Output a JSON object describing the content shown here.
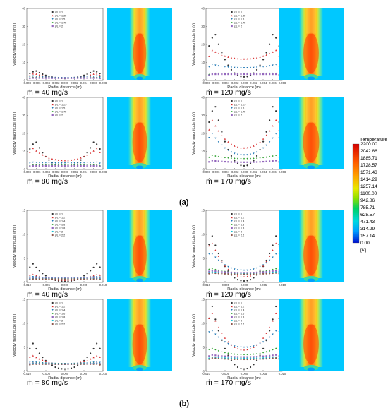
{
  "colorbar": {
    "title": "Temperature",
    "unit": "[K]",
    "ticks": [
      "2200.00",
      "2042.86",
      "1885.71",
      "1728.57",
      "1571.43",
      "1414.29",
      "1257.14",
      "1100.00",
      "942.86",
      "785.71",
      "628.57",
      "471.43",
      "314.29",
      "157.14",
      "0.00"
    ]
  },
  "panel_labels": {
    "a": "(a)",
    "b": "(b)"
  },
  "flow_labels": {
    "a_40": "ṁ = 40 mg/s",
    "a_120": "ṁ = 120 mg/s",
    "a_80": "ṁ = 80 mg/s",
    "a_170": "ṁ = 170 mg/s",
    "b_40": "ṁ = 40 mg/s",
    "b_120": "ṁ = 120 mg/s",
    "b_80": "ṁ = 80 mg/s",
    "b_170": "ṁ = 170 mg/s"
  },
  "colors": {
    "contour_background": "#00c8ff",
    "series": [
      "#333333",
      "#d62728",
      "#1f77b4",
      "#2ca02c",
      "#9467bd",
      "#17becf"
    ]
  },
  "chart_data": [
    {
      "id": "a1",
      "type": "scatter",
      "flow": "ṁ = 40 mg/s",
      "xlabel": "Radial distance (m)",
      "ylabel": "Velocity magnitude (m/s)",
      "xlim": [
        -0.008,
        0.008
      ],
      "ylim": [
        0,
        40
      ],
      "xticks": [
        "-0.008",
        "-0.006",
        "-0.004",
        "-0.002",
        "0.000",
        "0.002",
        "0.004",
        "0.006",
        "0.008"
      ],
      "yticks": [
        "0",
        "10",
        "20",
        "30",
        "40"
      ],
      "series": [
        {
          "name": "z/L = 1",
          "peak": 5.5,
          "center": 1.2,
          "peak_x": 0.0062
        },
        {
          "name": "z/L = 1.25",
          "peak": 4.0,
          "center": 1.5,
          "peak_x": 0.0065
        },
        {
          "name": "z/L = 1.5",
          "peak": 2.5,
          "center": 1.5,
          "peak_x": 0.0068
        },
        {
          "name": "z/L = 1.75",
          "peak": 1.8,
          "center": 1.4,
          "peak_x": 0.007
        },
        {
          "name": "z/L = 2",
          "peak": 1.4,
          "center": 1.3,
          "peak_x": 0.007
        }
      ]
    },
    {
      "id": "a2",
      "type": "scatter",
      "flow": "ṁ = 120 mg/s",
      "xlabel": "Radial distance (m)",
      "ylabel": "Velocity magnitude (m/s)",
      "xlim": [
        -0.008,
        0.008
      ],
      "ylim": [
        0,
        40
      ],
      "xticks": [
        "-0.008",
        "-0.006",
        "-0.004",
        "-0.002",
        "0.000",
        "0.002",
        "0.004",
        "0.006",
        "0.008"
      ],
      "yticks": [
        "0",
        "10",
        "20",
        "30",
        "40"
      ],
      "series": [
        {
          "name": "z/L = 1",
          "peak": 27,
          "center": 2,
          "peak_x": 0.0062
        },
        {
          "name": "z/L = 1.25",
          "peak": 17,
          "center": 12,
          "peak_x": 0.0068
        },
        {
          "name": "z/L = 1.5",
          "peak": 9,
          "center": 7,
          "peak_x": 0.007
        },
        {
          "name": "z/L = 1.75",
          "peak": 4,
          "center": 4,
          "peak_x": 0.007
        },
        {
          "name": "z/L = 2",
          "peak": 3.5,
          "center": 3.5,
          "peak_x": 0.007
        }
      ]
    },
    {
      "id": "a3",
      "type": "scatter",
      "flow": "ṁ = 80 mg/s",
      "xlabel": "Radial distance (m)",
      "ylabel": "Velocity magnitude (m/s)",
      "xlim": [
        -0.008,
        0.008
      ],
      "ylim": [
        0,
        40
      ],
      "xticks": [
        "-0.008",
        "-0.006",
        "-0.004",
        "-0.002",
        "0.000",
        "0.002",
        "0.004",
        "0.006",
        "0.008"
      ],
      "yticks": [
        "0",
        "10",
        "20",
        "30",
        "40"
      ],
      "series": [
        {
          "name": "z/L = 1",
          "peak": 16,
          "center": 1.5,
          "peak_x": 0.0062
        },
        {
          "name": "z/L = 1.25",
          "peak": 12,
          "center": 5,
          "peak_x": 0.0068
        },
        {
          "name": "z/L = 1.5",
          "peak": 4,
          "center": 3.5,
          "peak_x": 0.007
        },
        {
          "name": "z/L = 1.75",
          "peak": 2.5,
          "center": 2.5,
          "peak_x": 0.007
        },
        {
          "name": "z/L = 2",
          "peak": 2,
          "center": 2,
          "peak_x": 0.007
        }
      ]
    },
    {
      "id": "a4",
      "type": "scatter",
      "flow": "ṁ = 170 mg/s",
      "xlabel": "Radial distance (m)",
      "ylabel": "Velocity magnitude (m/s)",
      "xlim": [
        -0.008,
        0.008
      ],
      "ylim": [
        0,
        40
      ],
      "xticks": [
        "-0.008",
        "-0.006",
        "-0.004",
        "-0.002",
        "0.000",
        "0.002",
        "0.004",
        "0.006",
        "0.008"
      ],
      "yticks": [
        "0",
        "10",
        "20",
        "30",
        "40"
      ],
      "series": [
        {
          "name": "z/L = 1",
          "peak": 37,
          "center": 2,
          "peak_x": 0.0062
        },
        {
          "name": "z/L = 1.25",
          "peak": 28,
          "center": 12,
          "peak_x": 0.0068
        },
        {
          "name": "z/L = 1.5",
          "peak": 21,
          "center": 8,
          "peak_x": 0.007
        },
        {
          "name": "z/L = 1.75",
          "peak": 8,
          "center": 6,
          "peak_x": 0.007
        },
        {
          "name": "z/L = 2",
          "peak": 5,
          "center": 4,
          "peak_x": 0.007
        }
      ]
    },
    {
      "id": "b1",
      "type": "scatter",
      "flow": "ṁ = 40 mg/s",
      "xlabel": "Radial distance (m)",
      "ylabel": "Velocity magnitude (m/s)",
      "xlim": [
        -0.01,
        0.01
      ],
      "ylim": [
        0,
        15
      ],
      "xticks": [
        "-0.010",
        "-0.005",
        "0.000",
        "0.005",
        "0.010"
      ],
      "yticks": [
        "0",
        "5",
        "10",
        "15"
      ],
      "series": [
        {
          "name": "z/L = 1",
          "peak": 4,
          "center": 0.2,
          "peak_x": 0.0085
        },
        {
          "name": "z/L = 1.2",
          "peak": 1.8,
          "center": 0.5,
          "peak_x": 0.0088
        },
        {
          "name": "z/L = 1.4",
          "peak": 1.2,
          "center": 0.9,
          "peak_x": 0.009
        },
        {
          "name": "z/L = 1.6",
          "peak": 1,
          "center": 1,
          "peak_x": 0.009
        },
        {
          "name": "z/L = 1.8",
          "peak": 0.9,
          "center": 0.9,
          "peak_x": 0.009
        },
        {
          "name": "z/L = 2",
          "peak": 0.8,
          "center": 0.8,
          "peak_x": 0.009
        },
        {
          "name": "z/L = 2.2",
          "peak": 0.7,
          "center": 0.7,
          "peak_x": 0.009
        }
      ]
    },
    {
      "id": "b2",
      "type": "scatter",
      "flow": "ṁ = 120 mg/s",
      "xlabel": "Radial distance (m)",
      "ylabel": "Velocity magnitude (m/s)",
      "xlim": [
        -0.01,
        0.01
      ],
      "ylim": [
        0,
        15
      ],
      "xticks": [
        "-0.010",
        "-0.005",
        "0.000",
        "0.005",
        "0.010"
      ],
      "yticks": [
        "0",
        "5",
        "10",
        "15"
      ],
      "series": [
        {
          "name": "z/L = 1",
          "peak": 10,
          "center": 0.3,
          "peak_x": 0.0085
        },
        {
          "name": "z/L = 1.2",
          "peak": 9,
          "center": 1.2,
          "peak_x": 0.0088
        },
        {
          "name": "z/L = 1.4",
          "peak": 6.5,
          "center": 2.5,
          "peak_x": 0.009
        },
        {
          "name": "z/L = 1.6",
          "peak": 3,
          "center": 2,
          "peak_x": 0.009
        },
        {
          "name": "z/L = 1.8",
          "peak": 2.5,
          "center": 2,
          "peak_x": 0.009
        },
        {
          "name": "z/L = 2",
          "peak": 2.2,
          "center": 1.8,
          "peak_x": 0.009
        },
        {
          "name": "z/L = 2.2",
          "peak": 2,
          "center": 1.7,
          "peak_x": 0.009
        }
      ]
    },
    {
      "id": "b3",
      "type": "scatter",
      "flow": "ṁ = 80 mg/s",
      "xlabel": "Radial distance (m)",
      "ylabel": "Velocity magnitude (m/s)",
      "xlim": [
        -0.01,
        0.01
      ],
      "ylim": [
        0,
        15
      ],
      "xticks": [
        "-0.010",
        "-0.005",
        "0.000",
        "0.005",
        "0.010"
      ],
      "yticks": [
        "0",
        "5",
        "10",
        "15"
      ],
      "series": [
        {
          "name": "z/L = 1",
          "peak": 6,
          "center": 0.5,
          "peak_x": 0.0085
        },
        {
          "name": "z/L = 1.2",
          "peak": 3.5,
          "center": 1.5,
          "peak_x": 0.0088
        },
        {
          "name": "z/L = 1.4",
          "peak": 2,
          "center": 1.6,
          "peak_x": 0.009
        },
        {
          "name": "z/L = 1.6",
          "peak": 1.8,
          "center": 1.6,
          "peak_x": 0.009
        },
        {
          "name": "z/L = 1.8",
          "peak": 1.7,
          "center": 1.5,
          "peak_x": 0.009
        },
        {
          "name": "z/L = 2",
          "peak": 1.6,
          "center": 1.5,
          "peak_x": 0.009
        },
        {
          "name": "z/L = 2.2",
          "peak": 1.5,
          "center": 1.5,
          "peak_x": 0.009
        }
      ]
    },
    {
      "id": "b4",
      "type": "scatter",
      "flow": "ṁ = 170 mg/s",
      "xlabel": "Radial distance (m)",
      "ylabel": "Velocity magnitude (m/s)",
      "xlim": [
        -0.01,
        0.01
      ],
      "ylim": [
        0,
        15
      ],
      "xticks": [
        "-0.010",
        "-0.005",
        "0.000",
        "0.005",
        "0.010"
      ],
      "yticks": [
        "0",
        "5",
        "10",
        "15"
      ],
      "series": [
        {
          "name": "z/L = 1",
          "peak": 14,
          "center": 0.5,
          "peak_x": 0.0085
        },
        {
          "name": "z/L = 1.2",
          "peak": 13,
          "center": 4.5,
          "peak_x": 0.0088
        },
        {
          "name": "z/L = 1.4",
          "peak": 9,
          "center": 5,
          "peak_x": 0.009
        },
        {
          "name": "z/L = 1.6",
          "peak": 5,
          "center": 3.5,
          "peak_x": 0.009
        },
        {
          "name": "z/L = 1.8",
          "peak": 3.5,
          "center": 3,
          "peak_x": 0.009
        },
        {
          "name": "z/L = 2",
          "peak": 3,
          "center": 2.7,
          "peak_x": 0.009
        },
        {
          "name": "z/L = 2.2",
          "peak": 2.8,
          "center": 2.5,
          "peak_x": 0.009
        }
      ]
    }
  ],
  "contours": [
    {
      "id": "a1",
      "flame_scale": 0.85
    },
    {
      "id": "a2",
      "flame_scale": 1.0
    },
    {
      "id": "a3",
      "flame_scale": 0.95
    },
    {
      "id": "a4",
      "flame_scale": 1.05
    },
    {
      "id": "b1",
      "flame_scale": 0.9
    },
    {
      "id": "b2",
      "flame_scale": 1.0
    },
    {
      "id": "b3",
      "flame_scale": 0.95
    },
    {
      "id": "b4",
      "flame_scale": 1.0
    }
  ]
}
